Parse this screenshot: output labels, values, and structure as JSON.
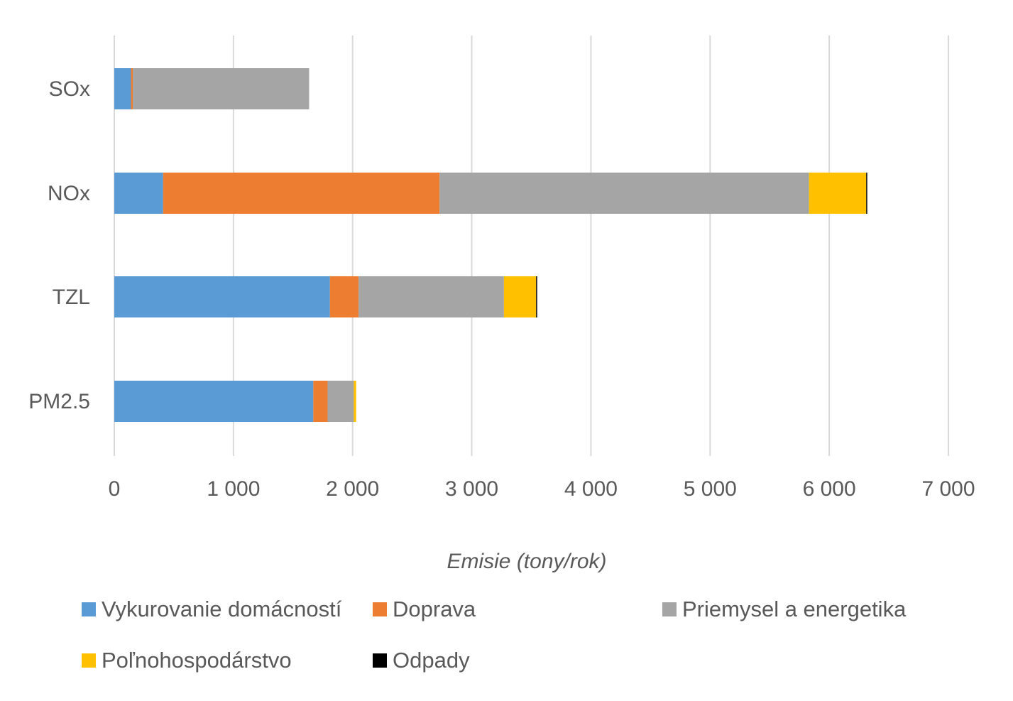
{
  "chart_data": {
    "type": "bar",
    "orientation": "horizontal",
    "stacked": true,
    "categories": [
      "SOx",
      "NOx",
      "TZL",
      "PM2.5"
    ],
    "series": [
      {
        "name": "Vykurovanie domácností",
        "color": "#5B9BD5",
        "values": [
          140,
          410,
          1810,
          1670
        ]
      },
      {
        "name": "Doprava",
        "color": "#ED7D31",
        "values": [
          15,
          2320,
          240,
          120
        ]
      },
      {
        "name": "Priemysel a energetika",
        "color": "#A5A5A5",
        "values": [
          1480,
          3100,
          1220,
          220
        ]
      },
      {
        "name": "Poľnohospodárstvo",
        "color": "#FFC000",
        "values": [
          0,
          480,
          270,
          20
        ]
      },
      {
        "name": "Odpady",
        "color": "#000000",
        "values": [
          0,
          8,
          5,
          0
        ]
      }
    ],
    "xlim": [
      0,
      7000
    ],
    "xticks": [
      0,
      1000,
      2000,
      3000,
      4000,
      5000,
      6000,
      7000
    ],
    "xtick_labels": [
      "0",
      "1 000",
      "2 000",
      "3 000",
      "4 000",
      "5 000",
      "6 000",
      "7 000"
    ],
    "xlabel": "Emisie (tony/rok)",
    "ylabel": "",
    "title": "",
    "grid": "vertical",
    "legend_position": "bottom"
  }
}
